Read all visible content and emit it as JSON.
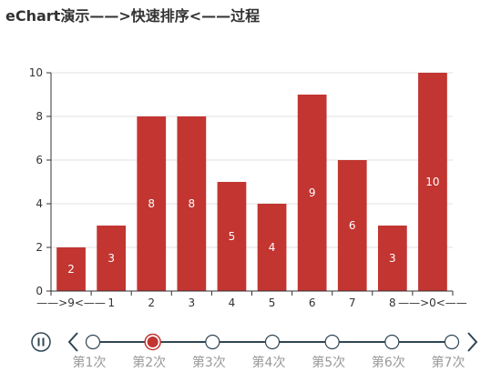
{
  "title": "eChart演示——>快速排序<——过程",
  "colors": {
    "bar": "#c23531",
    "axis": "#333333",
    "grid": "#e0e0e0",
    "timeline_line": "#304654",
    "timeline_label": "#999999",
    "timeline_active": "#c23531"
  },
  "chart_data": {
    "type": "bar",
    "title": "eChart演示——>快速排序<——过程",
    "categories": [
      "——>9<——",
      "1",
      "2",
      "3",
      "4",
      "5",
      "6",
      "7",
      "8",
      "——>0<——"
    ],
    "values": [
      2,
      3,
      8,
      8,
      5,
      4,
      9,
      6,
      3,
      10
    ],
    "data_labels": [
      "2",
      "3",
      "8",
      "8",
      "5",
      "4",
      "9",
      "6",
      "3",
      "10"
    ],
    "ylim": [
      0,
      10
    ],
    "yticks": [
      0,
      2,
      4,
      6,
      8,
      10
    ],
    "grid": "horizontal",
    "xlabel": "",
    "ylabel": ""
  },
  "timeline": {
    "items": [
      "第1次",
      "第2次",
      "第3次",
      "第4次",
      "第5次",
      "第6次",
      "第7次"
    ],
    "active_index": 1,
    "play_state": "paused",
    "play_icon": "pause-icon",
    "prev_icon": "chevron-left-icon",
    "next_icon": "chevron-right-icon"
  }
}
